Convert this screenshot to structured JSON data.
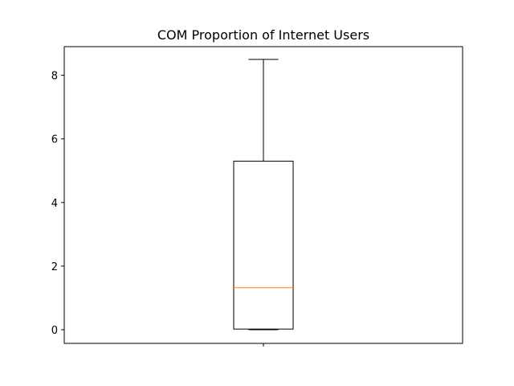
{
  "chart_data": {
    "type": "boxplot",
    "title": "COM Proportion of Internet Users",
    "xlabel": "",
    "ylabel": "",
    "x_tick_labels": [
      ""
    ],
    "ylim": [
      -0.43,
      8.9
    ],
    "y_ticks": [
      0,
      2,
      4,
      6,
      8
    ],
    "grid": false,
    "boxes": [
      {
        "whisker_low": 0,
        "q1": 0.02,
        "median": 1.32,
        "q3": 5.3,
        "whisker_high": 8.5
      }
    ],
    "colors": {
      "box": "#000000",
      "median": "#ff7f0e"
    }
  }
}
